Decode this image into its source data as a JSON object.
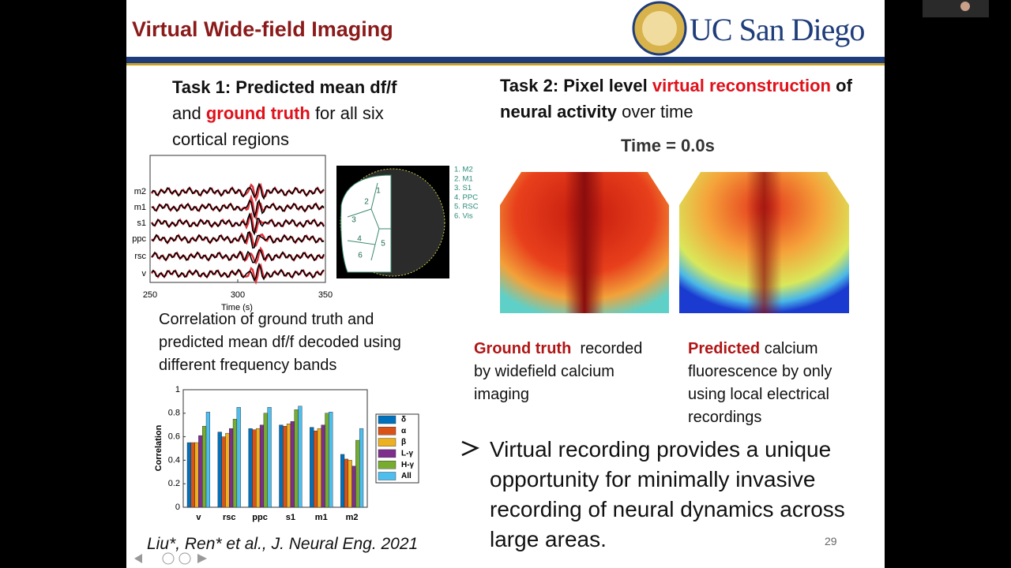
{
  "header": {
    "title": "Virtual Wide-field Imaging",
    "logo": "UC San Diego"
  },
  "task1": {
    "heading": "Task 1: Predicted mean df/f",
    "lead": "and",
    "highlight": "ground truth",
    "rest": "for all six cortical regions"
  },
  "traces": {
    "rows": [
      "m2",
      "m1",
      "s1",
      "ppc",
      "rsc",
      "v"
    ],
    "x_label": "Time (s)",
    "xlim": [
      250,
      350
    ],
    "xticks": [
      250,
      300,
      350
    ]
  },
  "region_map": {
    "numbers": [
      "1",
      "2",
      "3",
      "4",
      "5",
      "6"
    ],
    "legend": [
      "1. M2",
      "2. M1",
      "3. S1",
      "4. PPC",
      "5. RSC",
      "6. Vis"
    ]
  },
  "caption": "Correlation of ground truth and predicted mean df/f decoded using different frequency bands",
  "chart_data": {
    "type": "bar",
    "y_label": "Correlation",
    "categories": [
      "v",
      "rsc",
      "ppc",
      "s1",
      "m1",
      "m2"
    ],
    "series": [
      {
        "name": "δ",
        "color": "#0072bd",
        "values": [
          0.55,
          0.64,
          0.67,
          0.7,
          0.68,
          0.45
        ]
      },
      {
        "name": "α",
        "color": "#d95319",
        "values": [
          0.55,
          0.6,
          0.66,
          0.69,
          0.65,
          0.41
        ]
      },
      {
        "name": "β",
        "color": "#edb120",
        "values": [
          0.55,
          0.63,
          0.67,
          0.71,
          0.67,
          0.4
        ]
      },
      {
        "name": "L-γ",
        "color": "#7e2f8e",
        "values": [
          0.61,
          0.67,
          0.7,
          0.73,
          0.7,
          0.35
        ]
      },
      {
        "name": "H-γ",
        "color": "#77ac30",
        "values": [
          0.69,
          0.75,
          0.8,
          0.83,
          0.8,
          0.57
        ]
      },
      {
        "name": "All",
        "color": "#4dbeee",
        "values": [
          0.81,
          0.85,
          0.85,
          0.86,
          0.81,
          0.67
        ]
      }
    ],
    "ylim": [
      0,
      1
    ],
    "yticks": [
      0,
      0.2,
      0.4,
      0.6,
      0.8,
      1
    ]
  },
  "citation": "Liu*, Ren* et al., J. Neural Eng. 2021",
  "task2": {
    "heading": "Task 2: Pixel level",
    "highlight": "virtual reconstruction",
    "of": "of",
    "bold": "neural activity",
    "rest": "over time"
  },
  "time_label": "Time = 0.0s",
  "ground_truth": {
    "highlight": "Ground truth",
    "rest": "recorded by widefield calcium imaging"
  },
  "predicted": {
    "highlight": "Predicted",
    "rest": "calcium fluorescence by only using local electrical recordings"
  },
  "bullet": "Virtual recording provides a unique opportunity for minimally invasive recording of neural dynamics across large areas.",
  "page_number": 29
}
